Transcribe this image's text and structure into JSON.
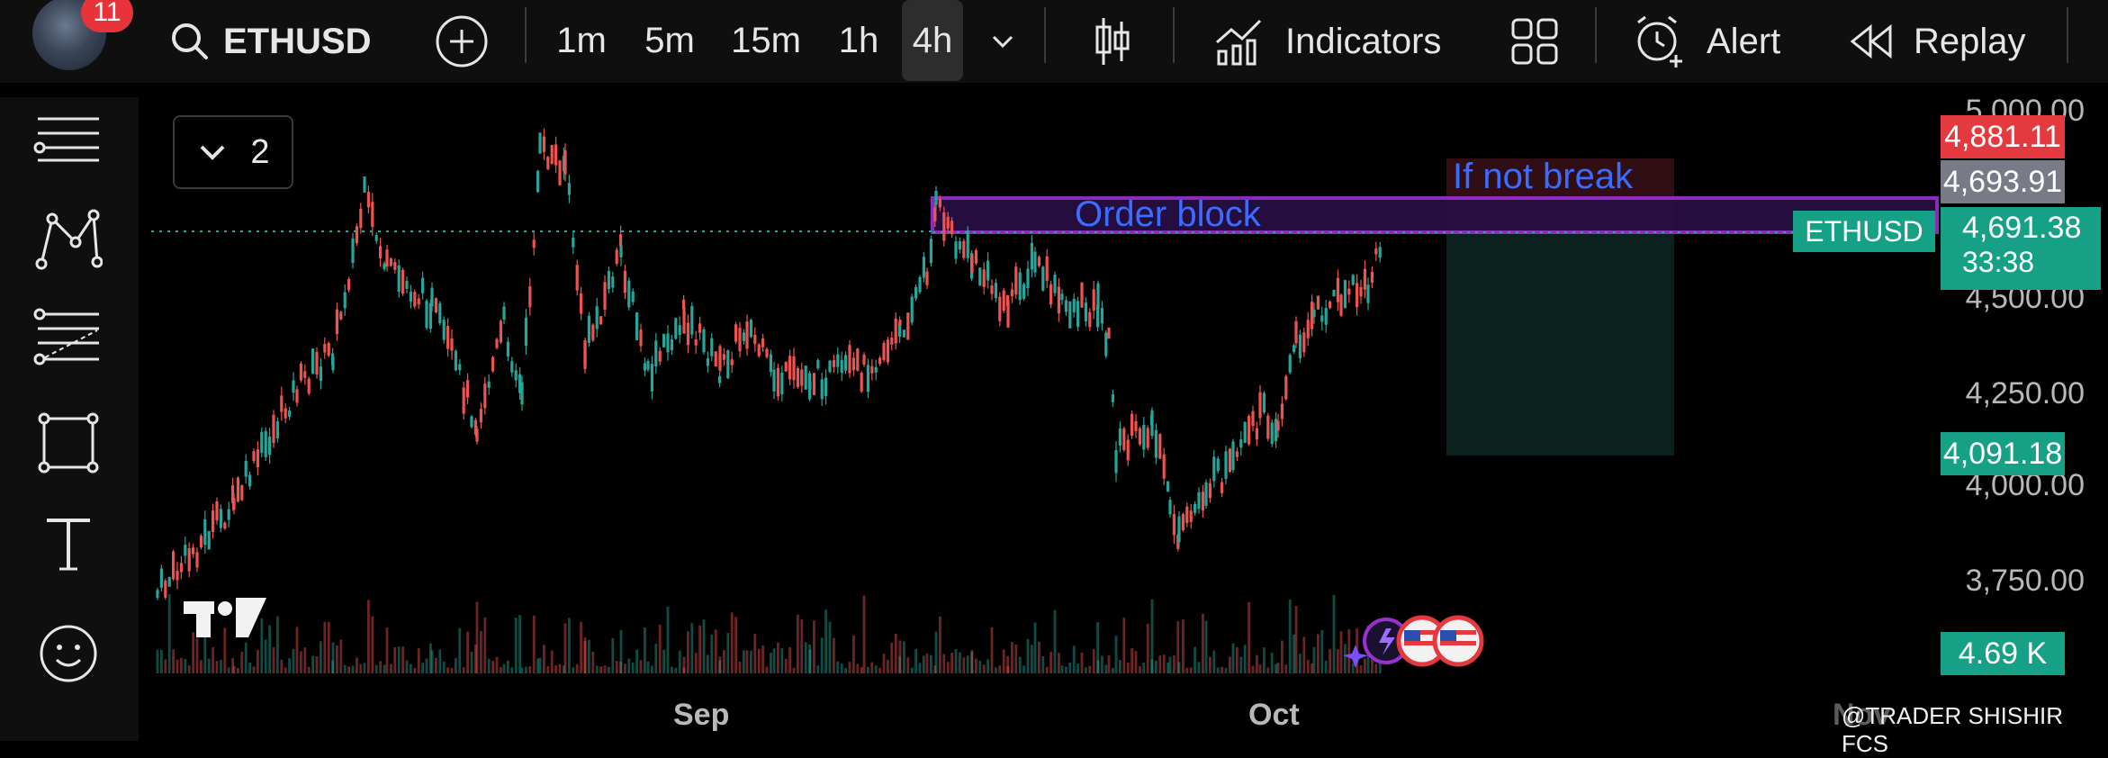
{
  "header": {
    "notifications": "11",
    "symbol": "ETHUSD",
    "timeframes": [
      "1m",
      "5m",
      "15m",
      "1h",
      "4h"
    ],
    "active_timeframe": "4h",
    "indicators_label": "Indicators",
    "alert_label": "Alert",
    "replay_label": "Replay"
  },
  "chart": {
    "layout_count": "2",
    "order_block_label": "Order block",
    "if_not_break_label": "If not break",
    "symbol_tag": "ETHUSD",
    "price_axis": [
      "5,000.00",
      "4,500.00",
      "4,250.00",
      "4,000.00",
      "3,750.00"
    ],
    "time_axis": [
      "Sep",
      "Oct",
      "Nov"
    ],
    "tags": {
      "red": "4,881.11",
      "gray": "4,693.91",
      "current": "4,691.38",
      "countdown": "33:38",
      "green": "4,091.18",
      "volume": "4.69 K"
    },
    "watermark": "@TRADER SHISHIR FCS"
  },
  "colors": {
    "up": "#26a69a",
    "down": "#ef5350",
    "purple": "#9b30d0",
    "accent_blue": "#3b6cff",
    "tag_green": "#16a085",
    "tag_red": "#e53940"
  }
}
